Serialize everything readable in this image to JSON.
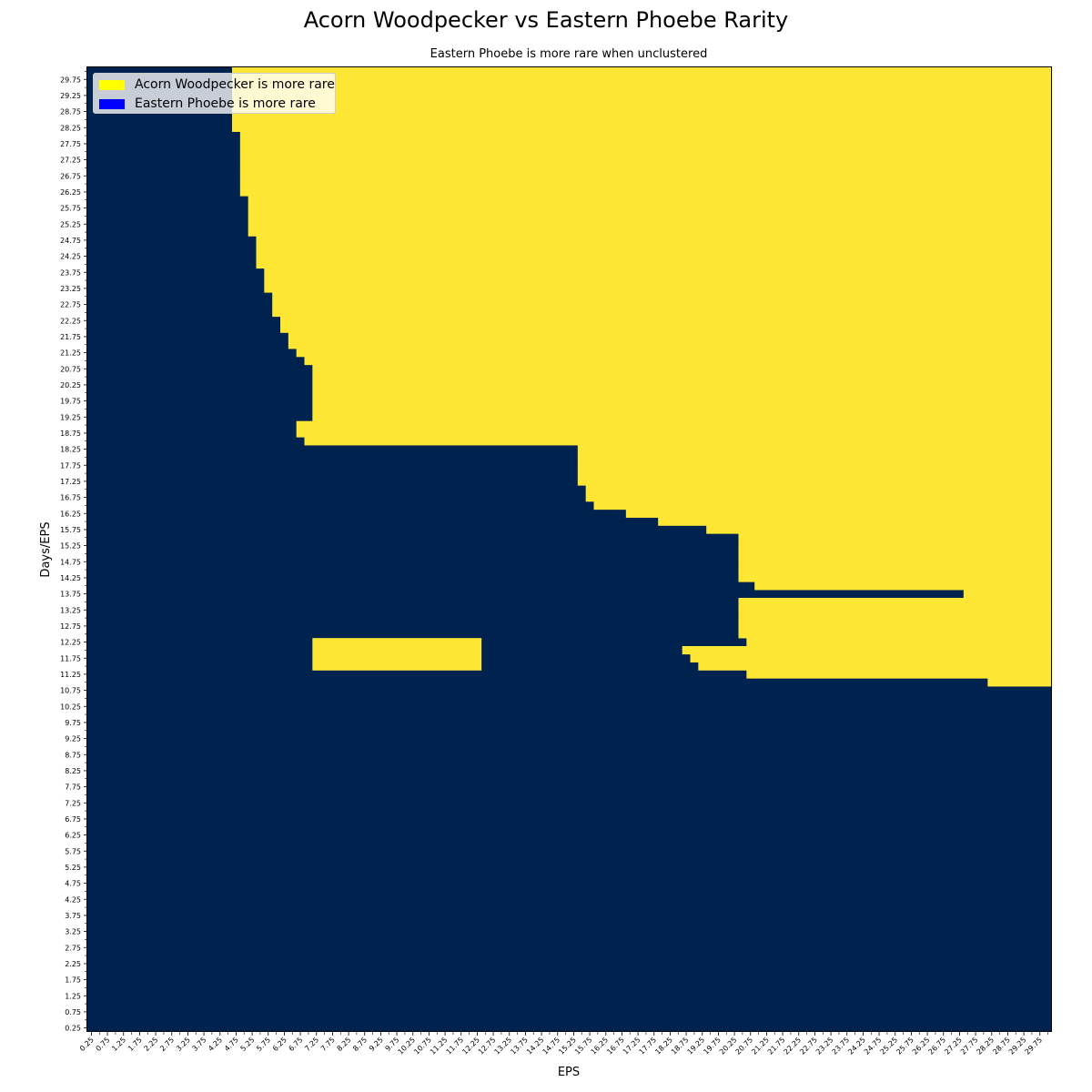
{
  "chart_data": {
    "type": "heatmap",
    "title": "Acorn Woodpecker vs Eastern Phoebe Rarity",
    "subtitle": "Eastern Phoebe is more rare when unclustered",
    "xlabel": "EPS",
    "ylabel": "Days/EPS",
    "x_start": 0.25,
    "x_step": 0.25,
    "x_count": 120,
    "y_start": 0.25,
    "y_step": 0.25,
    "y_count": 120,
    "x_tick_step": 0.5,
    "y_tick_step": 0.5,
    "colors": {
      "yellow": "#fde734",
      "navy": "#00224e"
    },
    "legend": [
      {
        "label": "Acorn Woodpecker is more rare",
        "color": "#ffff00"
      },
      {
        "label": "Eastern Phoebe is more rare",
        "color": "#0000ff"
      }
    ],
    "legend_position": "top-left",
    "yellow_regions": [
      {
        "y_from": 28.25,
        "x_from": 4.75
      },
      {
        "y_from": 26.25,
        "x_from": 5.0
      },
      {
        "y_from": 25.0,
        "x_from": 5.25
      },
      {
        "y_from": 24.0,
        "x_from": 5.5
      },
      {
        "y_from": 23.25,
        "x_from": 5.75
      },
      {
        "y_from": 22.5,
        "x_from": 6.0
      },
      {
        "y_from": 22.0,
        "x_from": 6.25
      },
      {
        "y_from": 21.5,
        "x_from": 6.5
      },
      {
        "y_from": 21.25,
        "x_from": 6.75
      },
      {
        "y_from": 21.0,
        "x_from": 7.0
      },
      {
        "y_from": 19.25,
        "x_from": 7.25
      },
      {
        "y_from": 18.75,
        "x_from": 6.75
      },
      {
        "y_from": 18.5,
        "x_from": 7.0
      },
      {
        "y_from": 17.25,
        "x_from": 15.5
      },
      {
        "y_from": 16.75,
        "x_from": 15.75
      },
      {
        "y_from": 16.5,
        "x_from": 16.0
      },
      {
        "y_from": 16.25,
        "x_from": 17.0
      },
      {
        "y_from": 16.0,
        "x_from": 18.0
      },
      {
        "y_from": 15.75,
        "x_from": 19.5
      },
      {
        "y_from": 14.25,
        "x_from": 20.5
      },
      {
        "y_from": 14.0,
        "x_from": 21.0
      },
      {
        "y_from": 13.75,
        "x_from": 27.5
      },
      {
        "y_from": 12.5,
        "x_from": 20.5
      },
      {
        "y_from": 12.25,
        "x_from": 20.75
      },
      {
        "y_from": 12.0,
        "x_from": 18.75
      },
      {
        "y_from": 11.75,
        "x_from": 19.0
      },
      {
        "y_from": 11.5,
        "x_from": 19.25
      },
      {
        "y_from": 11.25,
        "x_from": 20.75
      },
      {
        "y_from": 11.0,
        "x_from": 28.25
      }
    ],
    "yellow_bands": [
      {
        "y_min": 11.5,
        "y_max": 12.25,
        "x_min": 7.25,
        "x_max": 12.25
      }
    ]
  }
}
